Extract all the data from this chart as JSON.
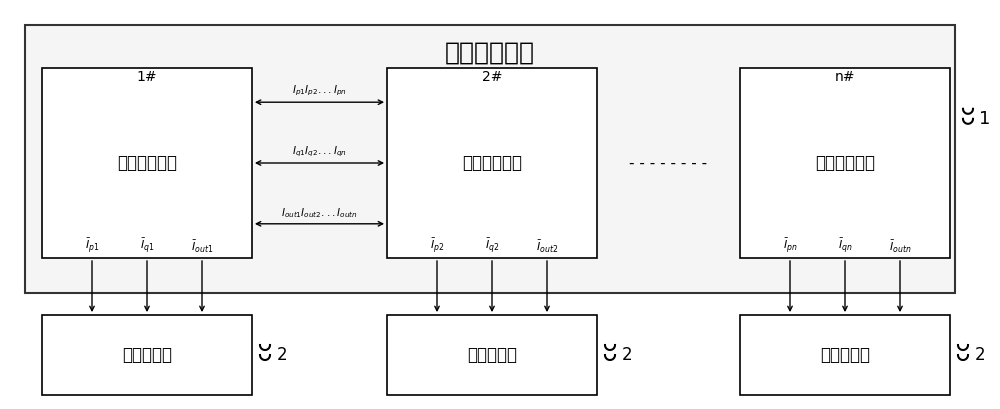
{
  "title_device": "信号传输装置",
  "label_1": "1#",
  "label_2": "2#",
  "label_n": "n#",
  "label_num_1": "1",
  "label_num_2": "2",
  "box_unit_label": "信号收发单元",
  "box_inverter_label": "单相逆变器",
  "signal_arrow1": "$I_{p1}I_{p2}...I_{pn}$",
  "signal_arrow2": "$I_{q1}I_{q2}...I_{qn}$",
  "signal_arrow3": "$I_{out1}I_{out2}...I_{outn}$",
  "inv_arrow_p1": "$\\bar{I}_{p1}$",
  "inv_arrow_q1": "$\\bar{I}_{q1}$",
  "inv_arrow_out1": "$\\bar{I}_{out1}$",
  "inv_arrow_p2": "$\\bar{I}_{p2}$",
  "inv_arrow_q2": "$\\bar{I}_{q2}$",
  "inv_arrow_out2": "$\\bar{I}_{out2}$",
  "inv_arrow_pn": "$\\bar{I}_{pn}$",
  "inv_arrow_qn": "$\\bar{I}_{qn}$",
  "inv_arrow_outn": "$\\bar{I}_{outn}$",
  "dots": "- - - - - - - -",
  "bg_color": "#ffffff",
  "box_color": "#ffffff",
  "border_color": "#000000",
  "text_color": "#000000"
}
